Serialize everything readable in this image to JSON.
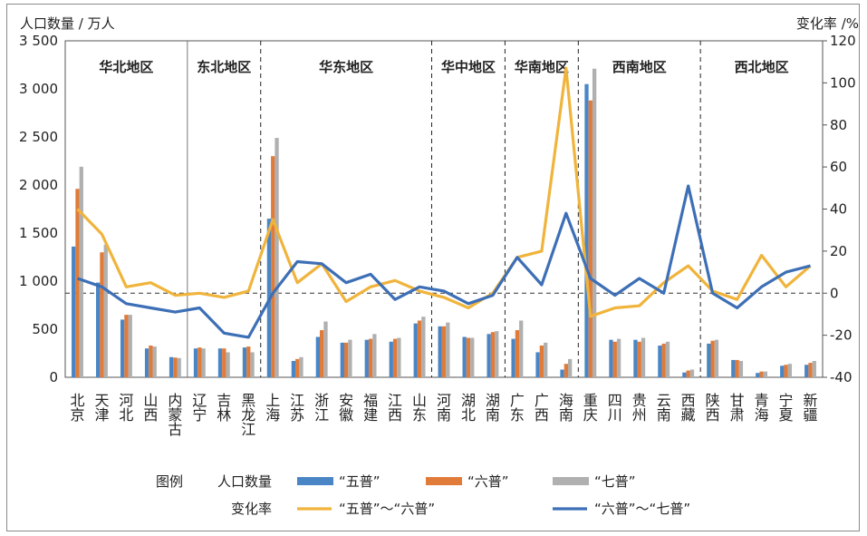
{
  "chart_data": {
    "type": "bar",
    "y_left_label": "人口数量 / 万人",
    "y_right_label": "变化率 /%",
    "ylim_left": [
      0,
      3500
    ],
    "ylim_right": [
      -40,
      120
    ],
    "left_ticks": [
      0,
      500,
      1000,
      1500,
      2000,
      2500,
      3000,
      3500
    ],
    "left_tick_labels": [
      "0",
      "500",
      "1 000",
      "1 500",
      "2 000",
      "2 500",
      "3 000",
      "3 500"
    ],
    "right_ticks": [
      -40,
      -20,
      0,
      20,
      40,
      60,
      80,
      100,
      120
    ],
    "right_tick_labels": [
      "-40",
      "-20",
      "0",
      "20",
      "40",
      "60",
      "80",
      "100",
      "120"
    ],
    "categories": [
      "北京",
      "天津",
      "河北",
      "山西",
      "内蒙古",
      "辽宁",
      "吉林",
      "黑龙江",
      "上海",
      "江苏",
      "浙江",
      "安徽",
      "福建",
      "江西",
      "山东",
      "河南",
      "湖北",
      "湖南",
      "广东",
      "广西",
      "海南",
      "重庆",
      "四川",
      "贵州",
      "云南",
      "西藏",
      "陕西",
      "甘肃",
      "青海",
      "宁夏",
      "新疆"
    ],
    "regions": [
      {
        "name": "华北地区",
        "start": 0,
        "end": 4
      },
      {
        "name": "东北地区",
        "start": 5,
        "end": 7
      },
      {
        "name": "华东地区",
        "start": 8,
        "end": 14
      },
      {
        "name": "华中地区",
        "start": 15,
        "end": 17
      },
      {
        "name": "华南地区",
        "start": 18,
        "end": 20
      },
      {
        "name": "西南地区",
        "start": 21,
        "end": 25
      },
      {
        "name": "西北地区",
        "start": 26,
        "end": 30
      }
    ],
    "bar_series": [
      {
        "name": "“五普”",
        "color": "#4a86c5",
        "values": [
          1360,
          985,
          600,
          300,
          210,
          300,
          300,
          310,
          1650,
          170,
          420,
          360,
          390,
          370,
          560,
          530,
          420,
          450,
          400,
          260,
          80,
          3050,
          390,
          390,
          330,
          50,
          350,
          180,
          45,
          120,
          130
        ]
      },
      {
        "name": "“六普”",
        "color": "#e07b39",
        "values": [
          1960,
          1300,
          650,
          330,
          205,
          310,
          300,
          320,
          2300,
          190,
          490,
          360,
          400,
          400,
          590,
          530,
          410,
          470,
          490,
          330,
          140,
          2880,
          370,
          370,
          350,
          70,
          380,
          180,
          60,
          130,
          150
        ]
      },
      {
        "name": "“七普”",
        "color": "#b0b0b0",
        "values": [
          2190,
          1380,
          650,
          320,
          200,
          300,
          260,
          260,
          2490,
          210,
          580,
          390,
          450,
          410,
          630,
          570,
          410,
          480,
          590,
          360,
          190,
          3210,
          400,
          410,
          370,
          80,
          390,
          170,
          60,
          140,
          170
        ]
      }
    ],
    "line_series": [
      {
        "name": "“五普”～“六普”",
        "color": "#f0b43c",
        "values": [
          40,
          28,
          3,
          5,
          -1,
          0,
          -2,
          1,
          35,
          5,
          14,
          -4,
          3,
          6,
          1,
          -2,
          -7,
          0,
          17,
          20,
          107,
          -11,
          -7,
          -6,
          5,
          13,
          1,
          -3,
          18,
          3,
          13
        ]
      },
      {
        "name": "“六普”～“七普”",
        "color": "#3d6fb6",
        "values": [
          7,
          3,
          -5,
          -7,
          -9,
          -7,
          -19,
          -21,
          0,
          15,
          14,
          5,
          9,
          -3,
          3,
          1,
          -5,
          -1,
          17,
          4,
          38,
          7,
          -1,
          7,
          0,
          51,
          0,
          -7,
          3,
          10,
          13
        ]
      }
    ],
    "legend": {
      "title": "图例",
      "bars_group": "人口数量",
      "lines_group": "变化率",
      "placement": "bottom"
    }
  }
}
